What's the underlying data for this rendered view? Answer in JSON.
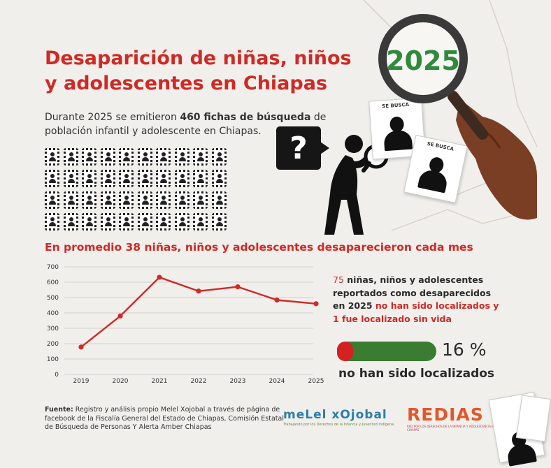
{
  "header": {
    "title_line1": "Desaparición de niñas, niños",
    "title_line2": "y adolescentes en Chiapas",
    "year_badge": "2025"
  },
  "intro": {
    "part1": "Durante 2025 se emitieron ",
    "bold": "460 fichas de búsqueda",
    "part2": " de población infantil y adolescente en Chiapas."
  },
  "icon_grid": {
    "count": 40,
    "icon": "missing-person-card-icon"
  },
  "question_icon": "?",
  "wanted_label": "SE BUSCA",
  "chart_data": {
    "type": "line",
    "x": [
      "2019",
      "2020",
      "2021",
      "2022",
      "2023",
      "2024",
      "2025"
    ],
    "values": [
      178,
      380,
      632,
      542,
      570,
      484,
      460
    ],
    "yticks": [
      "0",
      "100",
      "200",
      "300",
      "400",
      "500",
      "600",
      "700"
    ],
    "ylim": [
      0,
      700
    ],
    "subtitle": "En promedio 38 niñas, niños y adolescentes desaparecieron cada mes",
    "color": "#cf2a25",
    "grid": true
  },
  "stat": {
    "count": "75",
    "line1": " niñas, niños y adolescentes",
    "line2": "reportados como desaparecidos",
    "line3a": "en 2025 ",
    "line3b": "no han sido localizados y",
    "line4": "1 fue localizado sin vida"
  },
  "progress": {
    "percent": 16,
    "label": "16 %",
    "caption": "no han sido localizados",
    "fill_color": "#d42121",
    "track_color": "#3a7d32"
  },
  "source": {
    "label": "Fuente:",
    "text": " Registro y análisis propio Melel Xojobal a través de página de facebook de la Fiscalía General del Estado de Chiapas, Comisión Estatal de Búsqueda de Personas Y Alerta Amber Chiapas"
  },
  "logos": {
    "melel": "meLel xOjobal",
    "melel_tag": "Trabajando por los Derechos de la Infancia y Juventud Indígena",
    "redias": "REDIAS",
    "redias_tag": "RED POR LOS DERECHOS DE LA INFANCIA Y ADOLESCENCIA EN CHIAPAS"
  }
}
